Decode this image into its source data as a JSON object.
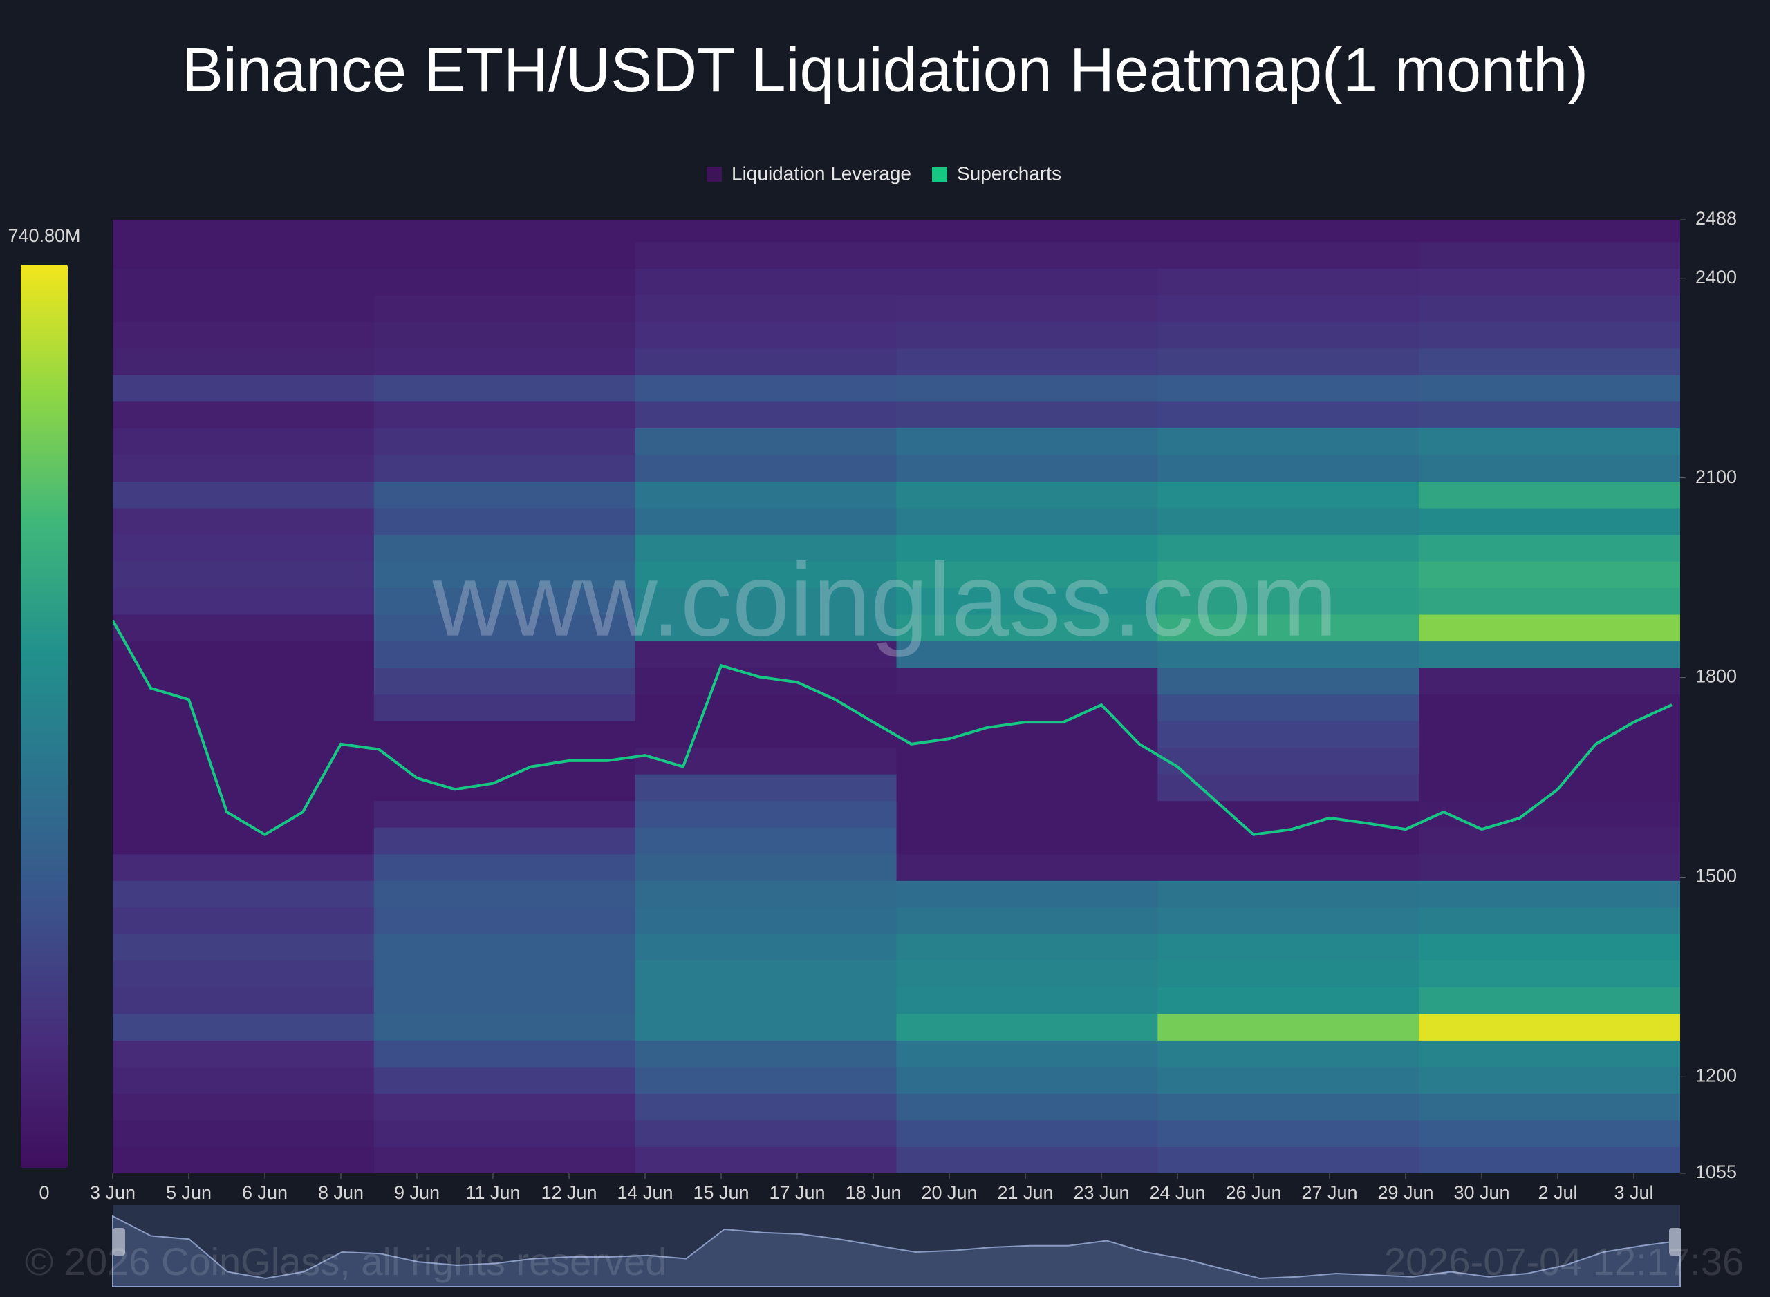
{
  "chart_data": {
    "type": "heatmap",
    "title": "Binance ETH/USDT Liquidation Heatmap(1 month)",
    "watermark": "www.coinglass.com",
    "copyright": "© 2026 CoinGlass, all rights reserved",
    "timestamp": "2026-07-04 12:17:36",
    "series": [
      {
        "name": "Liquidation Leverage",
        "color": "#3d1457"
      },
      {
        "name": "Supercharts",
        "color": "#16c784",
        "values": [
          1886,
          1784,
          1767,
          1598,
          1564,
          1598,
          1700,
          1692,
          1649,
          1632,
          1641,
          1666,
          1675,
          1675,
          1683,
          1666,
          1818,
          1801,
          1793,
          1767,
          1733,
          1700,
          1708,
          1725,
          1733,
          1733,
          1759,
          1700,
          1666,
          1615,
          1564,
          1572,
          1589,
          1581,
          1572,
          1598,
          1572,
          1589,
          1632,
          1700,
          1733,
          1759
        ]
      }
    ],
    "categories": [
      "3 Jun",
      null,
      "5 Jun",
      null,
      "6 Jun",
      null,
      "8 Jun",
      null,
      "9 Jun",
      null,
      "11 Jun",
      null,
      "12 Jun",
      null,
      "14 Jun",
      null,
      "15 Jun",
      null,
      "17 Jun",
      null,
      "18 Jun",
      null,
      "20 Jun",
      null,
      "21 Jun",
      null,
      "23 Jun",
      null,
      "24 Jun",
      null,
      "26 Jun",
      null,
      "27 Jun",
      null,
      "29 Jun",
      null,
      "30 Jun",
      null,
      "2 Jul",
      null,
      "3 Jul",
      null
    ],
    "ylim": [
      1055,
      2488
    ],
    "yticks": [
      1055,
      1200,
      1500,
      1800,
      2100,
      2400,
      2488
    ],
    "zlim": [
      0,
      740.8
    ],
    "zticks": [
      0,
      {
        "value": 740.8,
        "label": "740.80M"
      }
    ],
    "colorscale": [
      "#3f0f5e",
      "#472d7b",
      "#3b528b",
      "#2c728e",
      "#21918c",
      "#3fb77a",
      "#8fd744",
      "#f2e61c"
    ],
    "heatmap": {
      "y": [
        1075,
        1115,
        1155,
        1195,
        1235,
        1275,
        1315,
        1355,
        1395,
        1435,
        1475,
        1515,
        1555,
        1595,
        1635,
        1675,
        1715,
        1755,
        1795,
        1835,
        1875,
        1915,
        1955,
        1995,
        2035,
        2075,
        2115,
        2155,
        2195,
        2235,
        2275,
        2315,
        2355,
        2395,
        2435,
        2475
      ],
      "z": [
        [
          40,
          60,
          100,
          160,
          180,
          200
        ],
        [
          50,
          80,
          140,
          200,
          220,
          240
        ],
        [
          60,
          100,
          180,
          250,
          270,
          290
        ],
        [
          80,
          150,
          230,
          300,
          330,
          350
        ],
        [
          100,
          200,
          260,
          330,
          360,
          380
        ],
        [
          180,
          260,
          350,
          440,
          600,
          720
        ],
        [
          130,
          250,
          350,
          390,
          420,
          460
        ],
        [
          140,
          250,
          350,
          380,
          400,
          430
        ],
        [
          160,
          250,
          330,
          370,
          390,
          420
        ],
        [
          130,
          220,
          300,
          320,
          340,
          360
        ],
        [
          150,
          230,
          290,
          300,
          320,
          330
        ],
        [
          90,
          200,
          260,
          60,
          60,
          70
        ],
        [
          40,
          150,
          240,
          40,
          40,
          60
        ],
        [
          40,
          80,
          210,
          40,
          40,
          50
        ],
        [
          40,
          40,
          180,
          40,
          130,
          40
        ],
        [
          40,
          40,
          60,
          40,
          150,
          40
        ],
        [
          40,
          40,
          40,
          40,
          170,
          40
        ],
        [
          40,
          130,
          40,
          40,
          200,
          40
        ],
        [
          40,
          160,
          50,
          60,
          260,
          60
        ],
        [
          40,
          200,
          60,
          300,
          330,
          360
        ],
        [
          60,
          230,
          380,
          440,
          500,
          620
        ],
        [
          110,
          250,
          380,
          420,
          460,
          480
        ],
        [
          120,
          270,
          400,
          440,
          470,
          500
        ],
        [
          110,
          260,
          380,
          420,
          440,
          470
        ],
        [
          100,
          200,
          300,
          350,
          380,
          400
        ],
        [
          150,
          230,
          330,
          380,
          410,
          480
        ],
        [
          90,
          140,
          230,
          270,
          300,
          320
        ],
        [
          80,
          120,
          260,
          300,
          330,
          350
        ],
        [
          60,
          90,
          150,
          160,
          170,
          180
        ],
        [
          150,
          180,
          220,
          230,
          240,
          250
        ],
        [
          70,
          80,
          130,
          150,
          160,
          180
        ],
        [
          60,
          70,
          110,
          120,
          130,
          140
        ],
        [
          50,
          60,
          90,
          100,
          110,
          120
        ],
        [
          50,
          50,
          80,
          80,
          90,
          100
        ],
        [
          40,
          40,
          60,
          60,
          60,
          70
        ],
        [
          40,
          40,
          40,
          40,
          40,
          40
        ]
      ]
    }
  }
}
